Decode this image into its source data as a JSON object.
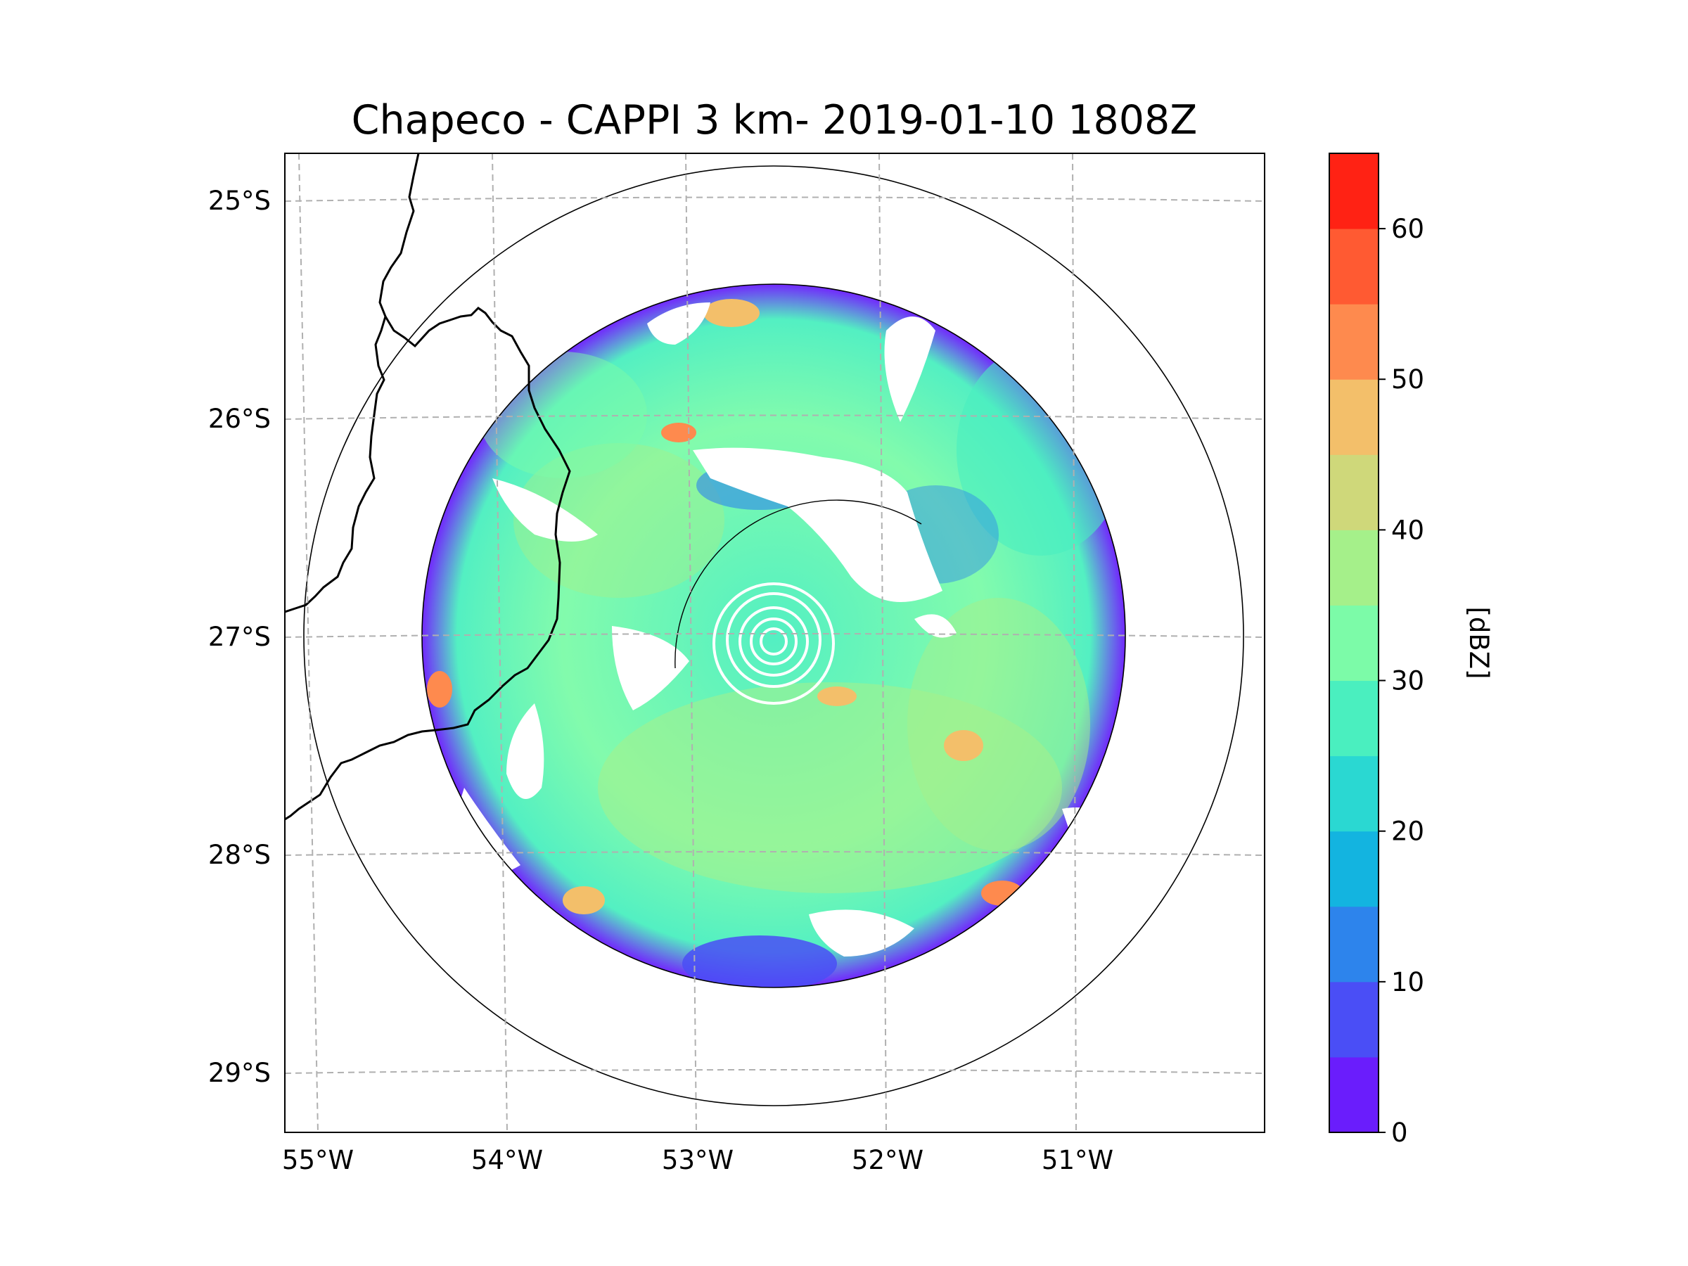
{
  "title": "Chapeco - CAPPI 3 km- 2019-01-10 1808Z",
  "map": {
    "lon_range": [
      -55.18,
      -50.05
    ],
    "lat_range": [
      -29.28,
      -24.78
    ],
    "lon_ticks": [
      {
        "value": -55,
        "label": "55°W"
      },
      {
        "value": -54,
        "label": "54°W"
      },
      {
        "value": -53,
        "label": "53°W"
      },
      {
        "value": -52,
        "label": "52°W"
      },
      {
        "value": -51,
        "label": "51°W"
      }
    ],
    "lat_ticks": [
      {
        "value": -25,
        "label": "25°S"
      },
      {
        "value": -26,
        "label": "26°S"
      },
      {
        "value": -27,
        "label": "27°S"
      },
      {
        "value": -28,
        "label": "28°S"
      },
      {
        "value": -29,
        "label": "29°S"
      }
    ],
    "radar_center": {
      "lon": -52.6,
      "lat": -27.02
    },
    "range_rings_deg": [
      1.8,
      2.3
    ],
    "colors": {
      "gridline": "#b0b0b0",
      "coastline": "#000000",
      "ring": "#000000"
    }
  },
  "colorbar": {
    "label": "[dBZ]",
    "min": 0,
    "max": 65,
    "ticks": [
      {
        "value": 0,
        "label": "0"
      },
      {
        "value": 10,
        "label": "10"
      },
      {
        "value": 20,
        "label": "20"
      },
      {
        "value": 30,
        "label": "30"
      },
      {
        "value": 40,
        "label": "40"
      },
      {
        "value": 50,
        "label": "50"
      },
      {
        "value": 60,
        "label": "60"
      }
    ],
    "levels": [
      {
        "from": 0,
        "to": 5,
        "color": "#6a1dfc"
      },
      {
        "from": 5,
        "to": 10,
        "color": "#4a4ef6"
      },
      {
        "from": 10,
        "to": 15,
        "color": "#2d84ec"
      },
      {
        "from": 15,
        "to": 20,
        "color": "#13b4e0"
      },
      {
        "from": 20,
        "to": 25,
        "color": "#2ad8d2"
      },
      {
        "from": 25,
        "to": 30,
        "color": "#4aefbf"
      },
      {
        "from": 30,
        "to": 35,
        "color": "#7cfba8"
      },
      {
        "from": 35,
        "to": 40,
        "color": "#a5f08a"
      },
      {
        "from": 40,
        "to": 45,
        "color": "#cfd87a"
      },
      {
        "from": 45,
        "to": 50,
        "color": "#f3bf6a"
      },
      {
        "from": 50,
        "to": 55,
        "color": "#fe8a4e"
      },
      {
        "from": 55,
        "to": 60,
        "color": "#ff5a32"
      },
      {
        "from": 60,
        "to": 65,
        "color": "#ff2214"
      }
    ]
  }
}
